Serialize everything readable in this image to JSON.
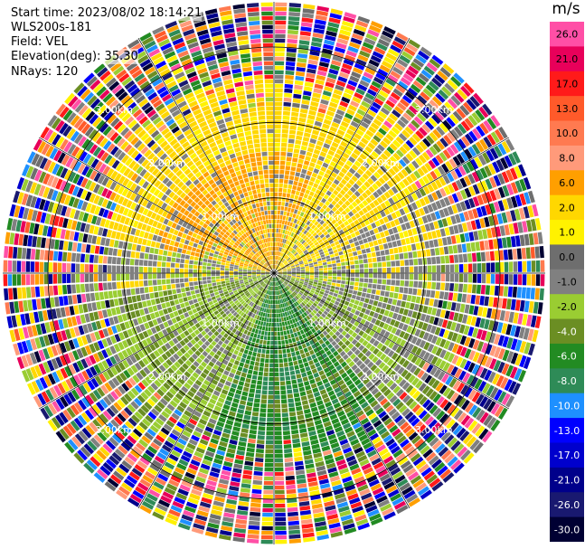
{
  "info": {
    "start_time": "Start time: 2023/08/02 18:14:21",
    "device": "WLS200s-181",
    "field": "Field: VEL",
    "elevation": "Elevation(deg): 35.30",
    "nrays": "NRays: 120"
  },
  "chart_data": {
    "type": "heatmap",
    "projection": "polar (PPI)",
    "field": "VEL",
    "unit": "m/s",
    "nrays": 120,
    "range_rings_km": [
      1.0,
      2.0,
      3.0
    ],
    "ring_labels": [
      "1.00km",
      "2.00km",
      "3.00km"
    ],
    "max_range_km": 3.6,
    "data_extent_km": 3.6,
    "colorbar": {
      "title": "m/s",
      "ticks": [
        "26.0",
        "21.0",
        "17.0",
        "13.0",
        "10.0",
        "8.0",
        "6.0",
        "2.0",
        "1.0",
        "0.0",
        "-1.0",
        "-2.0",
        "-4.0",
        "-6.0",
        "-8.0",
        "-10.0",
        "-13.0",
        "-17.0",
        "-21.0",
        "-26.0",
        "-30.0"
      ],
      "colors": [
        "#ff4fa6",
        "#e8005a",
        "#ff1a1a",
        "#ff5a2a",
        "#ff7a50",
        "#ff9a7a",
        "#ff9f00",
        "#ffd700",
        "#fff200",
        "#6e6e6e",
        "#808080",
        "#9acd32",
        "#6b8e23",
        "#228b22",
        "#2e8b57",
        "#1e90ff",
        "#0000ff",
        "#0000cd",
        "#00008b",
        "#191970",
        "#000033"
      ]
    },
    "pattern": {
      "summary": "Positive velocities (yellow/orange, +2 to +8 m/s) in upper half; negative velocities (green, -2 to -8 m/s) in lower half; noisy random values beyond ~2.6 km",
      "positive_sector_azimuth_deg": [
        280,
        80
      ],
      "negative_sector_azimuth_deg": [
        100,
        260
      ],
      "clean_data_range_km": 2.6
    }
  }
}
